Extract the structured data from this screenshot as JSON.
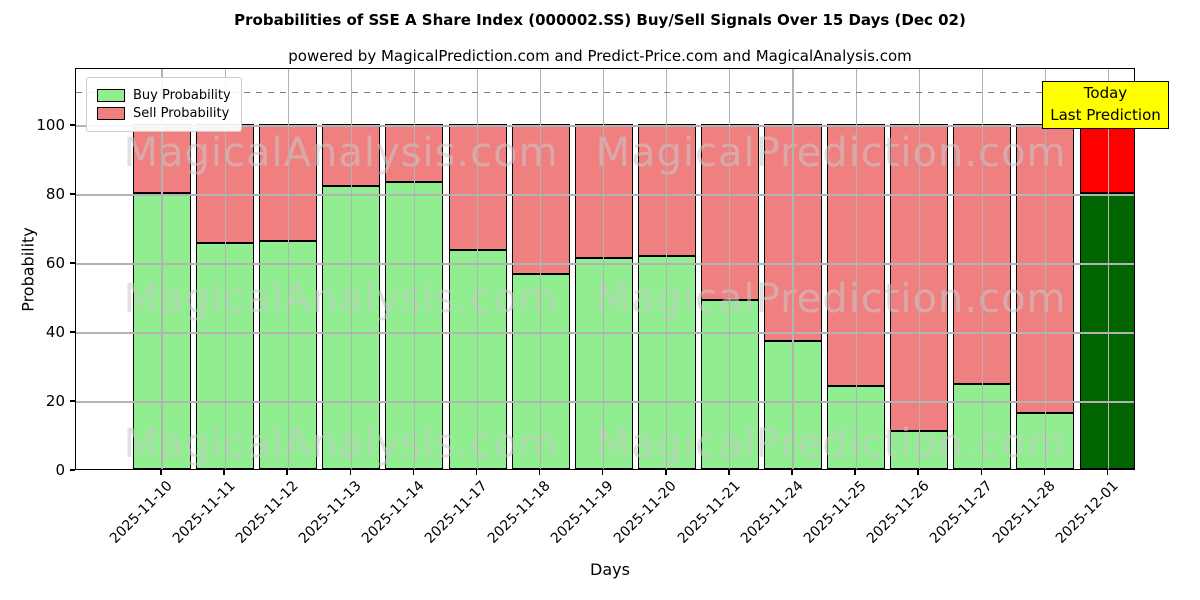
{
  "header": {
    "title": "Probabilities of SSE A Share Index (000002.SS) Buy/Sell Signals Over 15 Days (Dec 02)",
    "subtitle": "powered by MagicalPrediction.com and Predict-Price.com and MagicalAnalysis.com"
  },
  "chart_data": {
    "type": "bar",
    "stacked": true,
    "title": "Probabilities of SSE A Share Index (000002.SS) Buy/Sell Signals Over 15 Days (Dec 02)",
    "subtitle": "powered by MagicalPrediction.com and Predict-Price.com and MagicalAnalysis.com",
    "xlabel": "Days",
    "ylabel": "Probability",
    "ylim": [
      0,
      116.5
    ],
    "yticks": [
      0,
      20,
      40,
      60,
      80,
      100
    ],
    "grid": true,
    "threshold_dashed_y": 110,
    "categories": [
      "2025-11-10",
      "2025-11-11",
      "2025-11-12",
      "2025-11-13",
      "2025-11-14",
      "2025-11-17",
      "2025-11-18",
      "2025-11-19",
      "2025-11-20",
      "2025-11-21",
      "2025-11-24",
      "2025-11-25",
      "2025-11-26",
      "2025-11-27",
      "2025-11-28",
      "2025-12-01"
    ],
    "series": [
      {
        "name": "Buy Probability",
        "color": "#90ee90",
        "today_color": "#006400",
        "values": [
          80,
          65.5,
          66,
          82,
          83,
          63.5,
          56.5,
          61,
          61.5,
          49,
          37,
          24,
          11,
          24.5,
          16,
          80
        ]
      },
      {
        "name": "Sell Probability",
        "color": "#f08080",
        "today_color": "#ff0000",
        "values": [
          20,
          34.5,
          34,
          18,
          17,
          36.5,
          43.5,
          39,
          38.5,
          51,
          63,
          76,
          89,
          75.5,
          84,
          20
        ]
      }
    ],
    "today_index": 15,
    "legend_position": "upper left",
    "annotation": {
      "lines": [
        "Today",
        "Last Prediction"
      ],
      "bg": "#ffff00"
    },
    "watermarks": {
      "left": "MagicalAnalysis.com",
      "right": "MagicalPrediction.com"
    }
  }
}
